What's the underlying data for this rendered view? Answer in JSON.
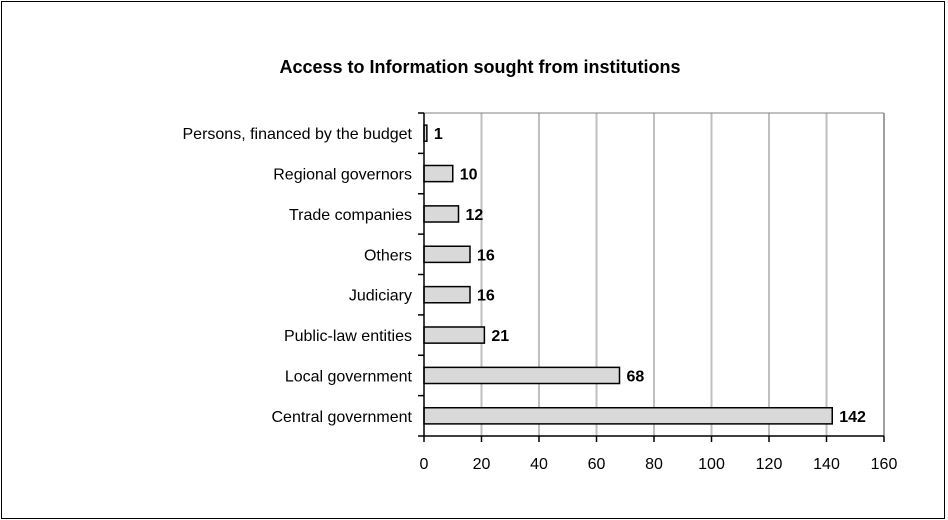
{
  "chart_data": {
    "type": "bar",
    "orientation": "horizontal",
    "title": "Access to Information sought from institutions",
    "categories": [
      "Persons, financed by the budget",
      "Regional governors",
      "Trade companies",
      "Others",
      "Judiciary",
      "Public-law entities",
      "Local government",
      "Central government"
    ],
    "values": [
      1,
      10,
      12,
      16,
      16,
      21,
      68,
      142
    ],
    "xlim": [
      0,
      160
    ],
    "x_ticks": [
      0,
      20,
      40,
      60,
      80,
      100,
      120,
      140,
      160
    ],
    "grid": "vertical",
    "legend": "none",
    "bar_color": "#d9d9d9",
    "grid_color": "#bfbfbf"
  }
}
